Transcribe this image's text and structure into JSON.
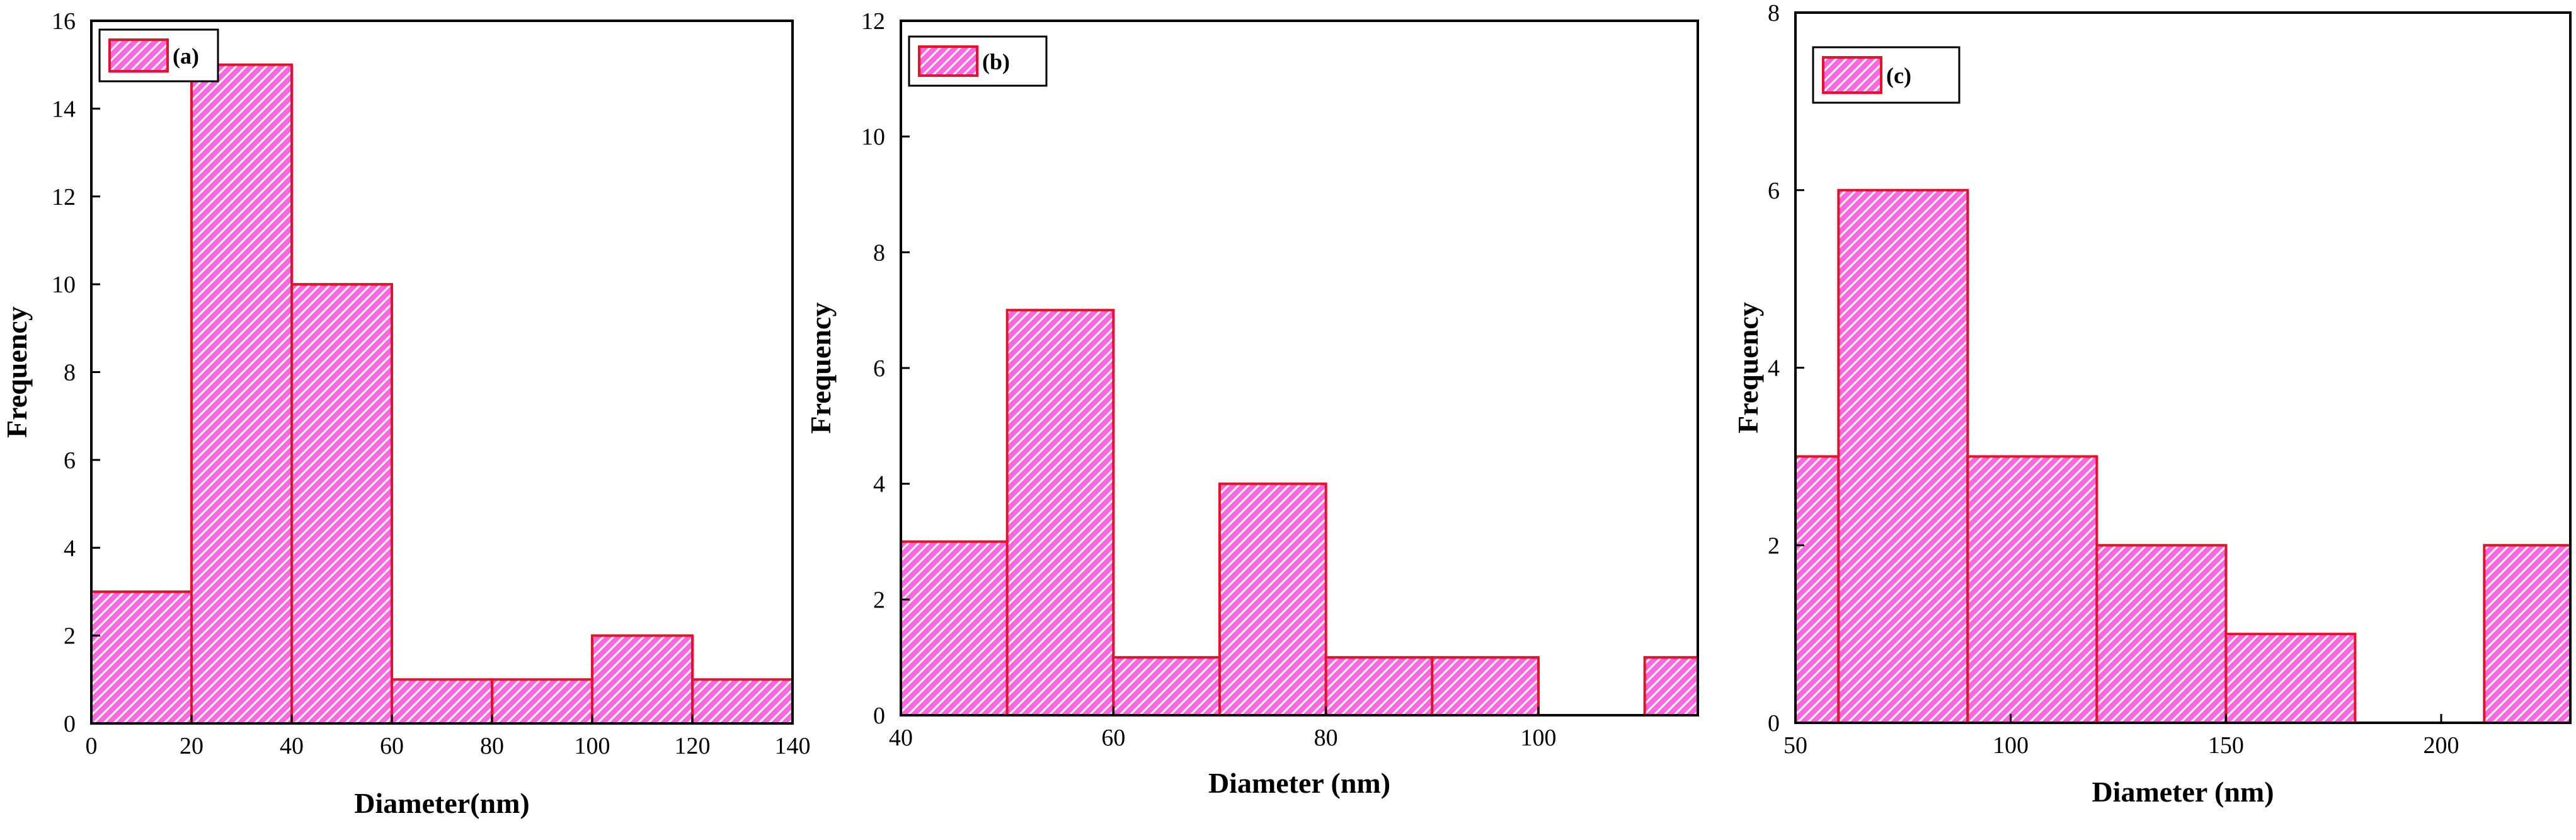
{
  "colors": {
    "bar_fill": "#ff66e0",
    "bar_edge": "#e8102a",
    "hatch": "#ffffff",
    "axis": "#000000"
  },
  "chart_data": [
    {
      "type": "bar",
      "legend": "(a)",
      "legend_position": "top-left",
      "xlabel": "Diameter(nm)",
      "ylabel": "Frequency",
      "xlim": [
        0,
        140
      ],
      "ylim": [
        0,
        16
      ],
      "xticks": [
        0,
        20,
        40,
        60,
        80,
        100,
        120,
        140
      ],
      "yticks": [
        0,
        2,
        4,
        6,
        8,
        10,
        12,
        14,
        16
      ],
      "bins": [
        {
          "x0": 0,
          "x1": 20,
          "value": 3
        },
        {
          "x0": 20,
          "x1": 40,
          "value": 15
        },
        {
          "x0": 40,
          "x1": 60,
          "value": 10
        },
        {
          "x0": 60,
          "x1": 80,
          "value": 1
        },
        {
          "x0": 80,
          "x1": 100,
          "value": 1
        },
        {
          "x0": 100,
          "x1": 120,
          "value": 2
        },
        {
          "x0": 120,
          "x1": 140,
          "value": 1
        }
      ]
    },
    {
      "type": "bar",
      "legend": "(b)",
      "legend_position": "top-left",
      "xlabel": "Diameter (nm)",
      "ylabel": "Frequency",
      "xlim": [
        40,
        115
      ],
      "ylim": [
        0,
        12
      ],
      "xticks": [
        40,
        60,
        80,
        100
      ],
      "yticks": [
        0,
        2,
        4,
        6,
        8,
        10,
        12
      ],
      "bins": [
        {
          "x0": 40,
          "x1": 50,
          "value": 3
        },
        {
          "x0": 50,
          "x1": 60,
          "value": 7
        },
        {
          "x0": 60,
          "x1": 70,
          "value": 1
        },
        {
          "x0": 70,
          "x1": 80,
          "value": 4
        },
        {
          "x0": 80,
          "x1": 90,
          "value": 1
        },
        {
          "x0": 90,
          "x1": 100,
          "value": 1
        },
        {
          "x0": 110,
          "x1": 115,
          "value": 1
        }
      ]
    },
    {
      "type": "bar",
      "legend": "(c)",
      "legend_position": "top-left",
      "xlabel": "Diameter (nm)",
      "ylabel": "Frequency",
      "xlim": [
        50,
        230
      ],
      "ylim": [
        0,
        8
      ],
      "xticks": [
        50,
        100,
        150,
        200
      ],
      "yticks": [
        0,
        2,
        4,
        6,
        8
      ],
      "bins": [
        {
          "x0": 50,
          "x1": 60,
          "value": 3
        },
        {
          "x0": 60,
          "x1": 90,
          "value": 6
        },
        {
          "x0": 90,
          "x1": 120,
          "value": 3
        },
        {
          "x0": 120,
          "x1": 150,
          "value": 2
        },
        {
          "x0": 150,
          "x1": 180,
          "value": 1
        },
        {
          "x0": 210,
          "x1": 240,
          "value": 2
        }
      ]
    }
  ]
}
